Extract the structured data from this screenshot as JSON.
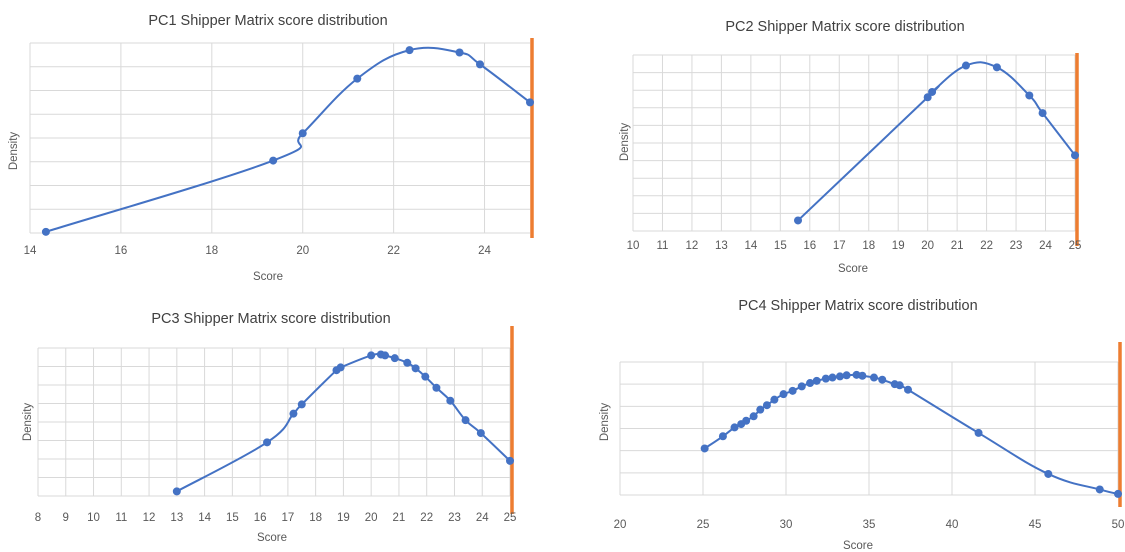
{
  "charts": [
    {
      "title": "PC1 Shipper Matrix score distribution",
      "xlabel": "Score",
      "ylabel": "Density",
      "ticks": [
        "14",
        "16",
        "18",
        "20",
        "22",
        "24"
      ]
    },
    {
      "title": "PC2 Shipper Matrix score distribution",
      "xlabel": "Score",
      "ylabel": "Density",
      "ticks": [
        "10",
        "11",
        "12",
        "13",
        "14",
        "15",
        "16",
        "17",
        "18",
        "19",
        "20",
        "21",
        "22",
        "23",
        "24",
        "25"
      ]
    },
    {
      "title": "PC3 Shipper Matrix score distribution",
      "xlabel": "Score",
      "ylabel": "Density",
      "ticks": [
        "8",
        "9",
        "10",
        "11",
        "12",
        "13",
        "14",
        "15",
        "16",
        "17",
        "18",
        "19",
        "20",
        "21",
        "22",
        "23",
        "24",
        "25"
      ]
    },
    {
      "title": "PC4 Shipper Matrix score distribution",
      "xlabel": "Score",
      "ylabel": "Density",
      "ticks": [
        "20",
        "25",
        "30",
        "35",
        "40",
        "45",
        "50"
      ]
    }
  ],
  "chart_data": [
    {
      "type": "line",
      "title": "PC1 Shipper Matrix score distribution",
      "xlabel": "Score",
      "ylabel": "Density",
      "xlim": [
        14,
        25
      ],
      "ylim": [
        0,
        8
      ],
      "grid": true,
      "line_color": "#4472C4",
      "marker_line_color": "#ED7D31",
      "marker_line_x": 25,
      "x": [
        14.35,
        19.35,
        20.0,
        21.2,
        22.35,
        23.45,
        23.9,
        25.0
      ],
      "y": [
        0.05,
        3.05,
        4.2,
        6.5,
        7.7,
        7.6,
        7.1,
        5.5
      ]
    },
    {
      "type": "line",
      "title": "PC2 Shipper Matrix score distribution",
      "xlabel": "Score",
      "ylabel": "Density",
      "xlim": [
        10,
        25
      ],
      "ylim": [
        0,
        10
      ],
      "grid": true,
      "line_color": "#4472C4",
      "marker_line_color": "#ED7D31",
      "marker_line_x": 25,
      "x": [
        15.6,
        20.0,
        20.15,
        21.3,
        22.35,
        23.45,
        23.9,
        25.0
      ],
      "y": [
        0.6,
        7.6,
        7.9,
        9.4,
        9.3,
        7.7,
        6.7,
        4.3
      ]
    },
    {
      "type": "line",
      "title": "PC3 Shipper Matrix score distribution",
      "xlabel": "Score",
      "ylabel": "Density",
      "xlim": [
        8,
        25
      ],
      "ylim": [
        0,
        8
      ],
      "grid": true,
      "line_color": "#4472C4",
      "marker_line_color": "#ED7D31",
      "marker_line_x": 25,
      "x": [
        13.0,
        16.25,
        17.2,
        17.5,
        18.75,
        18.9,
        20.0,
        20.35,
        20.5,
        20.85,
        21.3,
        21.6,
        21.95,
        22.35,
        22.85,
        23.4,
        23.95,
        25.0
      ],
      "y": [
        0.25,
        2.9,
        4.45,
        4.95,
        6.8,
        6.95,
        7.6,
        7.65,
        7.6,
        7.45,
        7.2,
        6.9,
        6.45,
        5.85,
        5.15,
        4.1,
        3.4,
        1.9
      ]
    },
    {
      "type": "line",
      "title": "PC4 Shipper Matrix score distribution",
      "xlabel": "Score",
      "ylabel": "Density",
      "xlim": [
        20,
        50
      ],
      "ylim": [
        0,
        6
      ],
      "grid": true,
      "line_color": "#4472C4",
      "marker_line_color": "#ED7D31",
      "marker_line_x": 50,
      "x": [
        25.1,
        26.2,
        26.9,
        27.3,
        27.6,
        28.05,
        28.45,
        28.85,
        29.3,
        29.85,
        30.4,
        30.95,
        31.45,
        31.85,
        32.4,
        32.8,
        33.25,
        33.65,
        34.25,
        34.6,
        35.3,
        35.8,
        36.55,
        36.85,
        37.35,
        41.6,
        45.8,
        48.9,
        50.0
      ],
      "y": [
        2.1,
        2.65,
        3.05,
        3.2,
        3.35,
        3.55,
        3.85,
        4.05,
        4.3,
        4.55,
        4.7,
        4.9,
        5.05,
        5.15,
        5.25,
        5.3,
        5.35,
        5.4,
        5.42,
        5.38,
        5.3,
        5.2,
        5.0,
        4.95,
        4.75,
        2.8,
        0.95,
        0.25,
        0.05
      ]
    }
  ]
}
